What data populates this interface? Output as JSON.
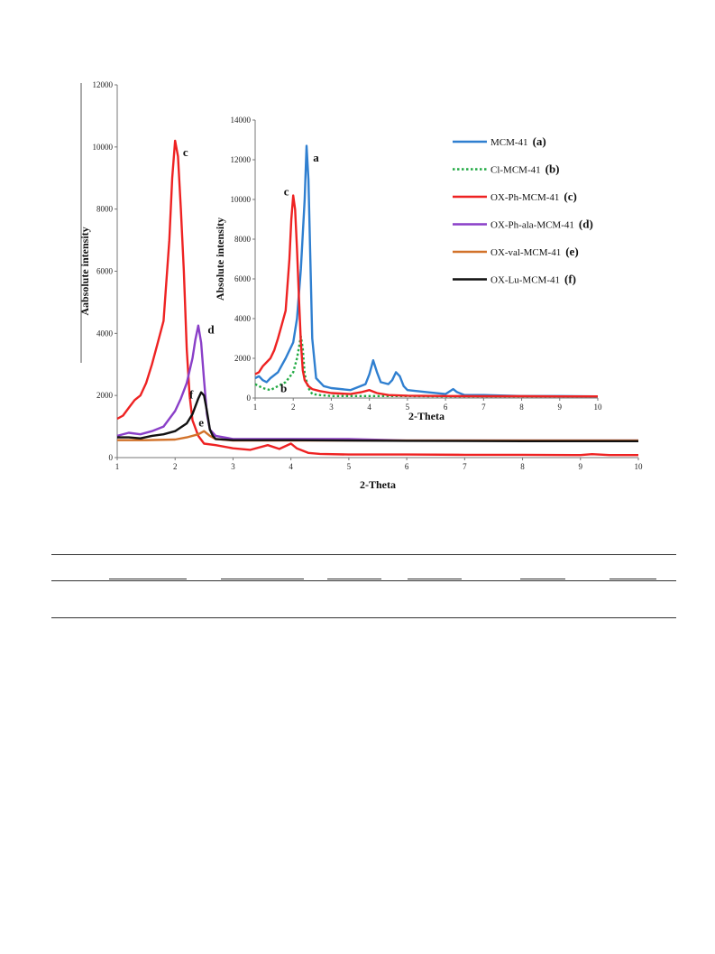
{
  "chart_data": [
    {
      "type": "line",
      "role": "main",
      "xlabel": "2-Theta",
      "ylabel": "Aabsolute intensity",
      "xlim": [
        1,
        10
      ],
      "ylim": [
        0,
        12000
      ],
      "xticks": [
        1,
        2,
        3,
        4,
        5,
        6,
        7,
        8,
        9,
        10
      ],
      "yticks": [
        0,
        2000,
        4000,
        6000,
        8000,
        10000,
        12000
      ],
      "grid": false,
      "series": [
        {
          "key": "c",
          "color": "#ee2222",
          "dashed": false,
          "x": [
            1,
            1.1,
            1.2,
            1.3,
            1.4,
            1.5,
            1.6,
            1.7,
            1.8,
            1.9,
            1.95,
            2.0,
            2.05,
            2.1,
            2.15,
            2.2,
            2.25,
            2.3,
            2.4,
            2.5,
            2.7,
            3.0,
            3.3,
            3.6,
            3.8,
            4.0,
            4.1,
            4.3,
            4.5,
            5.0,
            6.0,
            7.0,
            8.0,
            9.0,
            9.2,
            9.5,
            10
          ],
          "y": [
            1250,
            1350,
            1600,
            1850,
            2000,
            2400,
            3000,
            3700,
            4400,
            7000,
            9000,
            10200,
            9700,
            8000,
            6000,
            3500,
            2000,
            1200,
            700,
            450,
            400,
            300,
            250,
            400,
            280,
            450,
            300,
            150,
            120,
            100,
            100,
            90,
            90,
            80,
            110,
            80,
            80
          ]
        },
        {
          "key": "d",
          "color": "#8a3fc8",
          "dashed": false,
          "x": [
            1,
            1.2,
            1.4,
            1.6,
            1.8,
            2.0,
            2.1,
            2.2,
            2.3,
            2.35,
            2.4,
            2.45,
            2.5,
            2.55,
            2.6,
            2.7,
            3.0,
            4.0,
            5.0,
            6.0,
            8.0,
            10
          ],
          "y": [
            700,
            800,
            750,
            850,
            1000,
            1500,
            1900,
            2400,
            3200,
            3800,
            4250,
            3700,
            2500,
            1400,
            900,
            700,
            600,
            600,
            600,
            550,
            550,
            550
          ]
        },
        {
          "key": "e",
          "color": "#d2722a",
          "dashed": false,
          "x": [
            1,
            1.5,
            2.0,
            2.2,
            2.4,
            2.5,
            2.6,
            2.7,
            3.0,
            4.0,
            6.0,
            10
          ],
          "y": [
            560,
            560,
            580,
            650,
            750,
            850,
            700,
            600,
            550,
            550,
            550,
            550
          ]
        },
        {
          "key": "f",
          "color": "#111111",
          "dashed": false,
          "x": [
            1,
            1.2,
            1.4,
            1.6,
            1.8,
            2.0,
            2.2,
            2.3,
            2.4,
            2.45,
            2.5,
            2.55,
            2.6,
            2.65,
            2.7,
            3.0,
            4.0,
            6.0,
            8.0,
            10
          ],
          "y": [
            650,
            650,
            620,
            700,
            750,
            850,
            1100,
            1400,
            1900,
            2100,
            2000,
            1500,
            900,
            700,
            600,
            560,
            560,
            540,
            530,
            530
          ]
        }
      ],
      "annotations": [
        {
          "text": "c",
          "x": 2.18,
          "y": 9700
        },
        {
          "text": "d",
          "x": 2.62,
          "y": 4000
        },
        {
          "text": "f",
          "x": 2.28,
          "y": 1900
        },
        {
          "text": "e",
          "x": 2.45,
          "y": 1000
        }
      ]
    },
    {
      "type": "line",
      "role": "inset",
      "xlabel": "2-Theta",
      "ylabel": "Absolute intensity",
      "xlim": [
        1,
        10
      ],
      "ylim": [
        0,
        14000
      ],
      "xticks": [
        1,
        2,
        3,
        4,
        5,
        6,
        7,
        8,
        9,
        10
      ],
      "yticks": [
        0,
        2000,
        4000,
        6000,
        8000,
        10000,
        12000,
        14000
      ],
      "grid": false,
      "series": [
        {
          "key": "a",
          "color": "#2f7fd0",
          "dashed": false,
          "x": [
            1,
            1.1,
            1.2,
            1.3,
            1.4,
            1.6,
            1.8,
            2.0,
            2.1,
            2.2,
            2.3,
            2.35,
            2.4,
            2.45,
            2.5,
            2.6,
            2.8,
            3.0,
            3.5,
            3.9,
            4.0,
            4.1,
            4.2,
            4.3,
            4.5,
            4.6,
            4.7,
            4.8,
            4.9,
            5.0,
            5.5,
            6.0,
            6.2,
            6.3,
            6.5,
            7.0,
            8.0,
            9.0,
            10
          ],
          "y": [
            1000,
            1100,
            900,
            800,
            1000,
            1300,
            2000,
            2800,
            4000,
            6500,
            10000,
            12700,
            11000,
            7000,
            3000,
            1000,
            600,
            500,
            400,
            700,
            1200,
            1900,
            1300,
            800,
            700,
            900,
            1300,
            1100,
            600,
            400,
            300,
            200,
            450,
            300,
            150,
            150,
            100,
            100,
            80
          ]
        },
        {
          "key": "b",
          "color": "#22aa44",
          "dashed": true,
          "x": [
            1,
            1.2,
            1.4,
            1.6,
            1.8,
            2.0,
            2.1,
            2.2,
            2.25,
            2.3,
            2.4,
            2.5,
            2.7,
            3.0,
            4.0,
            5.0,
            6.0,
            8.0,
            10
          ],
          "y": [
            700,
            500,
            400,
            600,
            800,
            1300,
            2000,
            3100,
            2500,
            1200,
            500,
            200,
            150,
            100,
            100,
            100,
            80,
            80,
            80
          ]
        },
        {
          "key": "c",
          "color": "#ee2222",
          "dashed": false,
          "x": [
            1,
            1.1,
            1.2,
            1.3,
            1.4,
            1.5,
            1.6,
            1.7,
            1.8,
            1.9,
            1.95,
            2.0,
            2.05,
            2.1,
            2.15,
            2.2,
            2.25,
            2.3,
            2.4,
            2.5,
            2.7,
            3.0,
            3.5,
            3.8,
            4.0,
            4.2,
            4.5,
            5.0,
            6.0,
            7.0,
            8.0,
            9.0,
            10
          ],
          "y": [
            1200,
            1300,
            1600,
            1800,
            2000,
            2400,
            3000,
            3700,
            4400,
            7000,
            9000,
            10200,
            9500,
            7500,
            5000,
            2800,
            1400,
            900,
            600,
            450,
            350,
            250,
            200,
            300,
            400,
            250,
            150,
            120,
            100,
            90,
            90,
            80,
            80
          ]
        }
      ],
      "annotations": [
        {
          "text": "a",
          "x": 2.6,
          "y": 11900
        },
        {
          "text": "c",
          "x": 1.82,
          "y": 10200
        },
        {
          "text": "b",
          "x": 1.75,
          "y": 300
        }
      ]
    }
  ],
  "legend": [
    {
      "name": "MCM-41",
      "tag": "(a)",
      "color": "#2f7fd0",
      "dashed": false
    },
    {
      "name": "Cl-MCM-41",
      "tag": "(b)",
      "color": "#22aa44",
      "dashed": true
    },
    {
      "name": "OX-Ph-MCM-41",
      "tag": "(c)",
      "color": "#ee2222",
      "dashed": false
    },
    {
      "name": "OX-Ph-ala-MCM-41",
      "tag": "(d)",
      "color": "#8a3fc8",
      "dashed": false
    },
    {
      "name": "OX-val-MCM-41",
      "tag": "(e)",
      "color": "#d2722a",
      "dashed": false
    },
    {
      "name": "OX-Lu-MCM-41",
      "tag": "(f)",
      "color": "#111111",
      "dashed": false
    }
  ]
}
